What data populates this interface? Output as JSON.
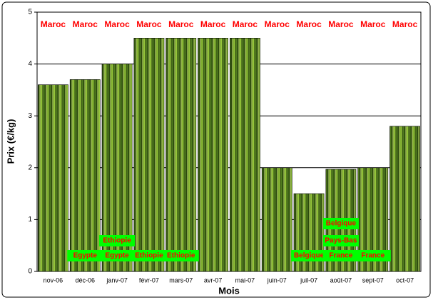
{
  "chart_data": {
    "type": "bar",
    "y_label": "Prix (€/kg)",
    "x_label": "Mois",
    "categories": [
      "nov-06",
      "déc-06",
      "janv-07",
      "févr-07",
      "mars-07",
      "avr-07",
      "mai-07",
      "juin-07",
      "juil-07",
      "août-07",
      "sept-07",
      "oct-07"
    ],
    "values": [
      3.6,
      3.7,
      4.0,
      4.5,
      4.5,
      4.5,
      4.5,
      2.0,
      1.5,
      1.97,
      2.0,
      2.8
    ],
    "top_labels": [
      "Maroc",
      "Maroc",
      "Maroc",
      "Maroc",
      "Maroc",
      "Maroc",
      "Maroc",
      "Maroc",
      "Maroc",
      "Maroc",
      "Maroc",
      "Maroc"
    ],
    "origins": [
      [],
      [
        "Egypte"
      ],
      [
        "Egypte",
        "Ethiopie"
      ],
      [
        "Ethiopie"
      ],
      [
        "Ethiopie"
      ],
      [],
      [],
      [],
      [
        "Belgique"
      ],
      [
        "France",
        "Pays-Bas",
        "Belgique"
      ],
      [
        "France"
      ],
      []
    ],
    "ylim": [
      0,
      5
    ],
    "yticks": [
      0,
      1,
      2,
      3,
      4,
      5
    ],
    "grid": true
  }
}
